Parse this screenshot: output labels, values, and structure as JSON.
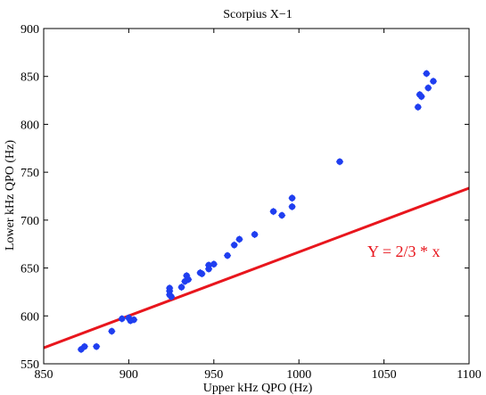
{
  "chart_data": {
    "type": "scatter",
    "title": "Scorpius X−1",
    "xlabel": "Upper kHz QPO (Hz)",
    "ylabel": "Lower kHz QPO (Hz)",
    "xlim": [
      850,
      1100
    ],
    "ylim": [
      550,
      900
    ],
    "xticks": [
      850,
      900,
      950,
      1000,
      1050,
      1100
    ],
    "yticks": [
      550,
      600,
      650,
      700,
      750,
      800,
      850,
      900
    ],
    "grid": false,
    "points": [
      {
        "x": 872,
        "y": 565
      },
      {
        "x": 874,
        "y": 568
      },
      {
        "x": 881,
        "y": 568
      },
      {
        "x": 890,
        "y": 584
      },
      {
        "x": 896,
        "y": 597
      },
      {
        "x": 900,
        "y": 598
      },
      {
        "x": 901,
        "y": 595
      },
      {
        "x": 903,
        "y": 596
      },
      {
        "x": 924,
        "y": 622
      },
      {
        "x": 924,
        "y": 626
      },
      {
        "x": 924,
        "y": 629
      },
      {
        "x": 925,
        "y": 620
      },
      {
        "x": 931,
        "y": 630
      },
      {
        "x": 933,
        "y": 636
      },
      {
        "x": 934,
        "y": 642
      },
      {
        "x": 935,
        "y": 638
      },
      {
        "x": 942,
        "y": 645
      },
      {
        "x": 943,
        "y": 644
      },
      {
        "x": 947,
        "y": 649
      },
      {
        "x": 947,
        "y": 653
      },
      {
        "x": 950,
        "y": 654
      },
      {
        "x": 958,
        "y": 663
      },
      {
        "x": 962,
        "y": 674
      },
      {
        "x": 965,
        "y": 680
      },
      {
        "x": 974,
        "y": 685
      },
      {
        "x": 985,
        "y": 709
      },
      {
        "x": 990,
        "y": 705
      },
      {
        "x": 996,
        "y": 714
      },
      {
        "x": 996,
        "y": 723
      },
      {
        "x": 1024,
        "y": 761
      },
      {
        "x": 1070,
        "y": 818
      },
      {
        "x": 1071,
        "y": 831
      },
      {
        "x": 1072,
        "y": 829
      },
      {
        "x": 1075,
        "y": 853
      },
      {
        "x": 1076,
        "y": 838
      },
      {
        "x": 1079,
        "y": 845
      }
    ],
    "line": {
      "label": "Y = 2/3 * x",
      "slope": 0.6667,
      "intercept": 0,
      "color": "#e8161d"
    },
    "marker_color": "#1f3ef0",
    "axis_color": "#000000"
  }
}
